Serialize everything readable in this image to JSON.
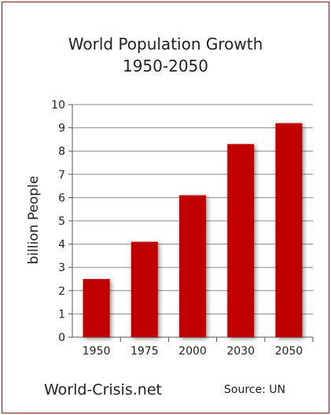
{
  "chart_data": {
    "type": "bar",
    "title": "World Population Growth",
    "subtitle": "1950-2050",
    "categories": [
      "1950",
      "1975",
      "2000",
      "2030",
      "2050"
    ],
    "values": [
      2.5,
      4.1,
      6.1,
      8.3,
      9.2
    ],
    "ylabel": "billion People",
    "xlabel": "",
    "ylim": [
      0,
      10
    ],
    "yticks": [
      "0",
      "1",
      "2",
      "3",
      "4",
      "5",
      "6",
      "7",
      "8",
      "9",
      "10"
    ],
    "grid": true,
    "bar_color": "#c00000"
  },
  "footer": {
    "brand": "World-Crisis.net",
    "source": "Source: UN"
  }
}
